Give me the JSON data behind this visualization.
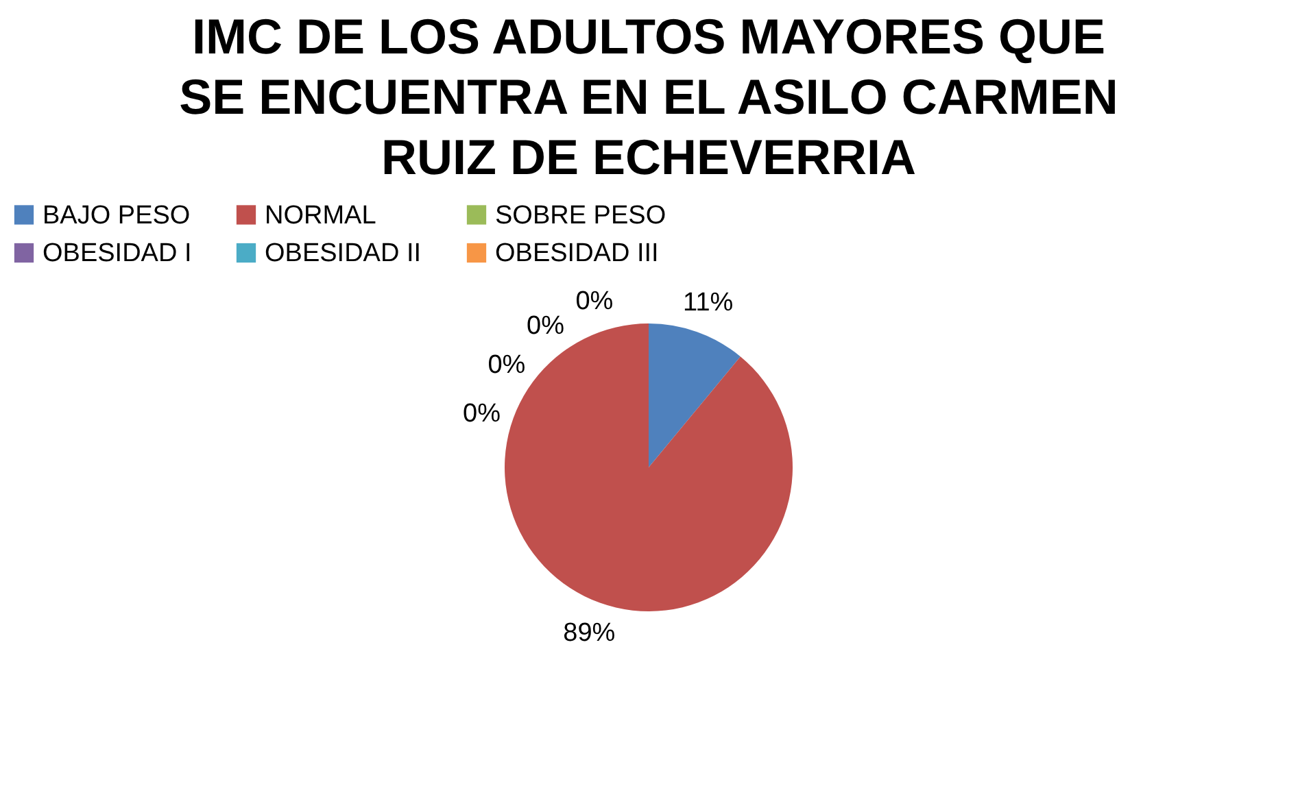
{
  "chart_data": {
    "type": "pie",
    "title": "IMC DE LOS ADULTOS MAYORES QUE SE ENCUENTRA EN EL ASILO CARMEN RUIZ DE ECHEVERRIA",
    "categories": [
      "BAJO PESO",
      "NORMAL",
      "SOBRE PESO",
      "OBESIDAD I",
      "OBESIDAD II",
      "OBESIDAD III"
    ],
    "values": [
      11,
      89,
      0,
      0,
      0,
      0
    ],
    "colors": [
      "#4f81bd",
      "#c0504d",
      "#9bbb59",
      "#8064a2",
      "#4bacc6",
      "#f79646"
    ],
    "value_labels": [
      "11%",
      "89%",
      "0%",
      "0%",
      "0%",
      "0%"
    ],
    "legend": "top"
  }
}
